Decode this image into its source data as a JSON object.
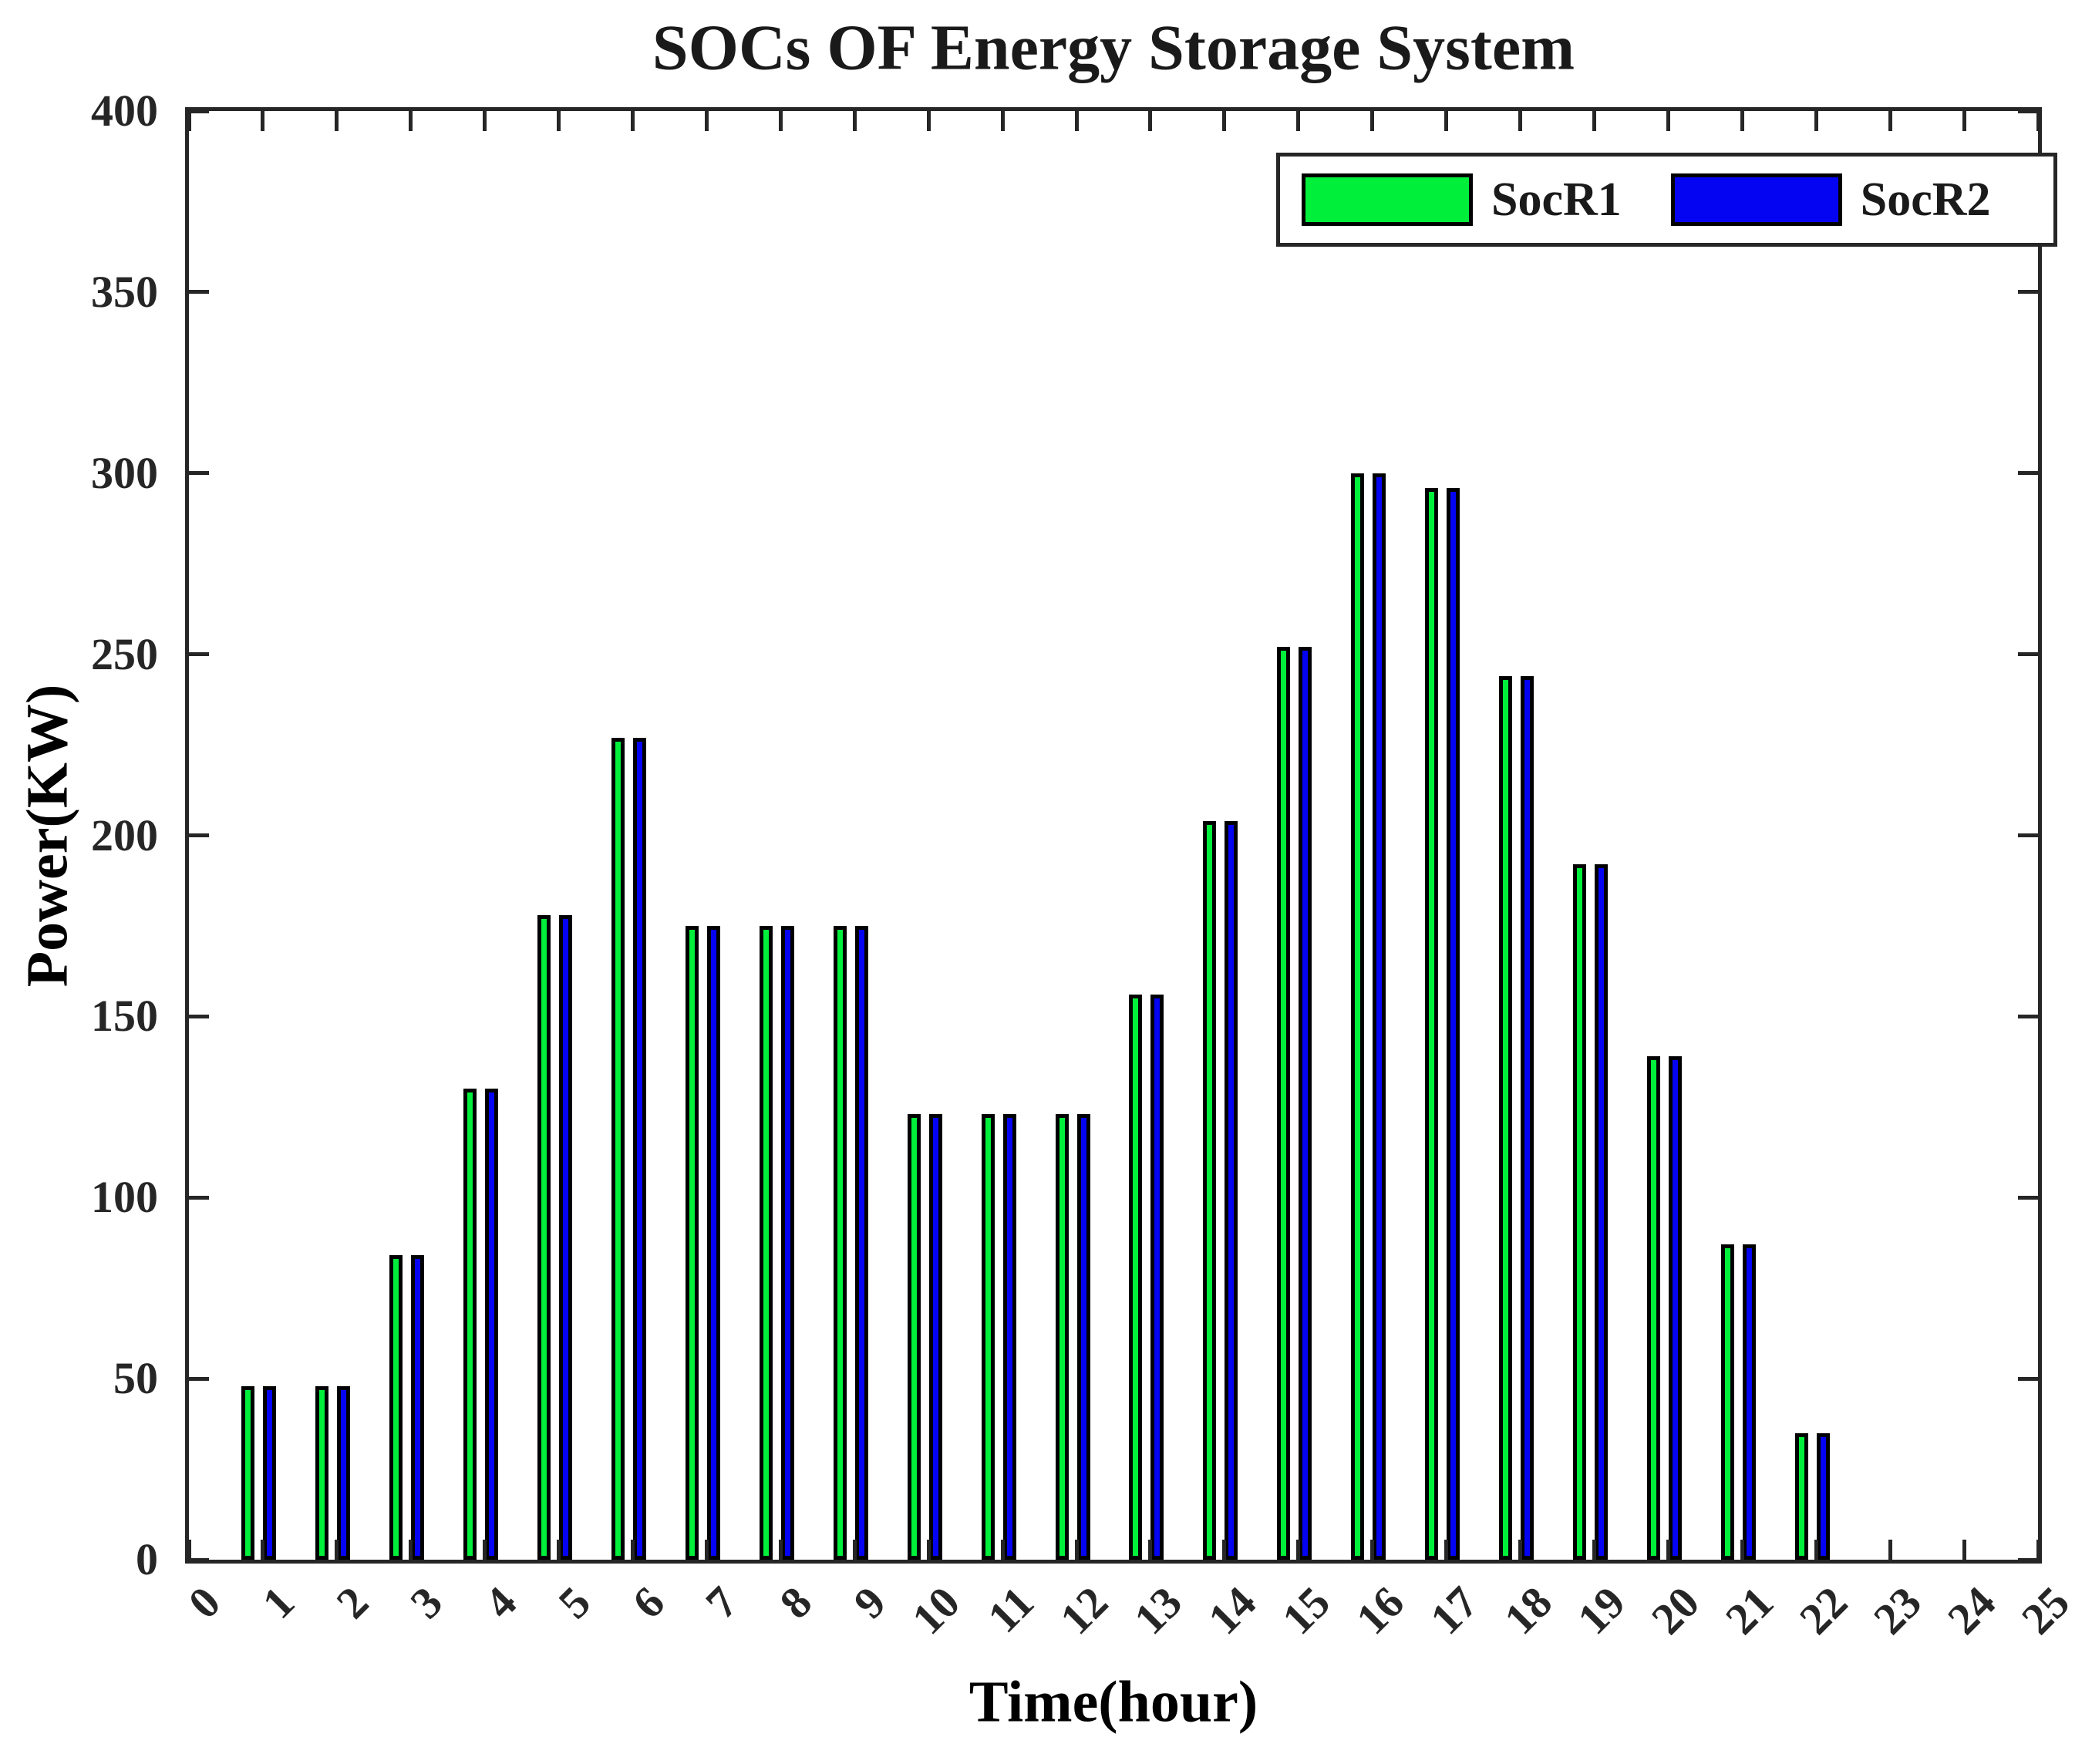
{
  "title": "SOCs OF Energy Storage System",
  "axes": {
    "ylabel": "Power(KW)",
    "xlabel": "Time(hour)",
    "ytick_labels": [
      "0",
      "50",
      "100",
      "150",
      "200",
      "250",
      "300",
      "350",
      "400"
    ],
    "xtick_labels": [
      "0",
      "1",
      "2",
      "3",
      "4",
      "5",
      "6",
      "7",
      "8",
      "9",
      "10",
      "11",
      "12",
      "13",
      "14",
      "15",
      "16",
      "17",
      "18",
      "19",
      "20",
      "21",
      "22",
      "23",
      "24",
      "25"
    ]
  },
  "legend": {
    "entries": [
      {
        "label": "SocR1",
        "color": "#00ef3b"
      },
      {
        "label": "SocR2",
        "color": "#0404f2"
      }
    ]
  },
  "colors": {
    "socr1_green": "#00ef3b",
    "socr2_blue": "#0404f2",
    "bar_edge": "#000000",
    "axis": "#262626",
    "text": "#1a1a1a",
    "background": "#ffffff"
  },
  "chart_data": {
    "type": "bar",
    "title": "SOCs OF Energy Storage System",
    "xlabel": "Time(hour)",
    "ylabel": "Power(KW)",
    "xlim": [
      0,
      25
    ],
    "ylim": [
      0,
      400
    ],
    "ytick_step": 50,
    "grid": false,
    "legend_position": "top-right",
    "bar_edge_color": "#000000",
    "x": [
      1,
      2,
      3,
      4,
      5,
      6,
      7,
      8,
      9,
      10,
      11,
      12,
      13,
      14,
      15,
      16,
      17,
      18,
      19,
      20,
      21,
      22
    ],
    "series": [
      {
        "name": "SocR1",
        "color": "#00ef3b",
        "values": [
          48,
          48,
          84,
          130,
          178,
          227,
          175,
          175,
          175,
          123,
          123,
          123,
          156,
          204,
          252,
          300,
          296,
          244,
          192,
          139,
          87,
          35
        ]
      },
      {
        "name": "SocR2",
        "color": "#0404f2",
        "values": [
          48,
          48,
          84,
          130,
          178,
          227,
          175,
          175,
          175,
          123,
          123,
          123,
          156,
          204,
          252,
          300,
          296,
          244,
          192,
          139,
          87,
          35
        ]
      }
    ]
  }
}
